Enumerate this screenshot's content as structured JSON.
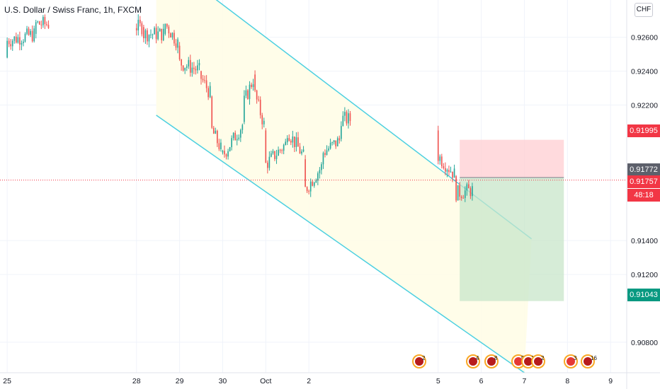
{
  "header": {
    "symbol_title": "U.S. Dollar / Swiss Franc, 1h, FXCM",
    "currency": "CHF"
  },
  "colors": {
    "up": "#26a69a",
    "down": "#ef5350",
    "channel_line": "#4dd0e1",
    "channel_fill": "#fffde7",
    "stop_zone": "#ffcdd2",
    "target_zone": "#c8e6c9",
    "stop_tag": "#f23645",
    "target_tag": "#089981"
  },
  "price_tags": {
    "stop": "0.91995",
    "entry": "0.91772",
    "last": "0.91757",
    "countdown": "48:18",
    "target": "0.91043"
  },
  "chart_data": {
    "type": "candlestick",
    "title": "U.S. Dollar / Swiss Franc, 1h, FXCM",
    "y_unit": "CHF",
    "ylim": [
      0.9062,
      0.9282
    ],
    "y_ticks": [
      "0.92600",
      "0.92400",
      "0.92200",
      "0.91400",
      "0.91200",
      "0.90800"
    ],
    "x_ticks": [
      "25",
      "28",
      "29",
      "30",
      "Oct",
      "2",
      "5",
      "6",
      "7",
      "8",
      "9"
    ],
    "x_range": [
      "Sep 24 20:00",
      "Oct 9 09:00"
    ],
    "grid": true,
    "candles_approx": [
      [
        "Sep 25 00:00",
        0.9248,
        0.9262,
        0.9244,
        0.9258
      ],
      [
        "Sep 25 16:00",
        0.9262,
        0.9272,
        0.9255,
        0.9268
      ],
      [
        "Sep 28 04:00",
        0.9266,
        0.9278,
        0.9258,
        0.9262
      ],
      [
        "Sep 28 16:00",
        0.9262,
        0.9272,
        0.9252,
        0.9268
      ],
      [
        "Sep 29 00:00",
        0.9255,
        0.9262,
        0.9238,
        0.9245
      ],
      [
        "Sep 29 12:00",
        0.924,
        0.9248,
        0.9232,
        0.9236
      ],
      [
        "Sep 29 18:00",
        0.9225,
        0.9232,
        0.92,
        0.9205
      ],
      [
        "Sep 30 00:00",
        0.9192,
        0.9198,
        0.9185,
        0.919
      ],
      [
        "Sep 30 12:00",
        0.921,
        0.9228,
        0.9205,
        0.9222
      ],
      [
        "Sep 30 18:00",
        0.9238,
        0.9245,
        0.922,
        0.9226
      ],
      [
        "Oct 1 00:00",
        0.9205,
        0.9215,
        0.916,
        0.9185
      ],
      [
        "Oct 1 12:00",
        0.9198,
        0.9212,
        0.919,
        0.9205
      ],
      [
        "Oct 1 22:00",
        0.9188,
        0.9195,
        0.9165,
        0.917
      ],
      [
        "Oct 2 08:00",
        0.9185,
        0.9198,
        0.9176,
        0.9192
      ],
      [
        "Oct 2 18:00",
        0.92,
        0.9218,
        0.9195,
        0.9212
      ],
      [
        "Oct 5 00:00",
        0.9205,
        0.9215,
        0.918,
        0.919
      ],
      [
        "Oct 5 10:00",
        0.9178,
        0.9185,
        0.9158,
        0.9168
      ],
      [
        "Oct 5 20:00",
        0.917,
        0.9182,
        0.9165,
        0.9177
      ]
    ],
    "channel": {
      "upper": [
        [
          "Sep 28 11:00",
          0.9309
        ],
        [
          "Oct 7 04:00",
          0.9141
        ]
      ],
      "lower": [
        [
          "Sep 28 11:00",
          0.9214
        ],
        [
          "Oct 7 00:00",
          0.9062
        ]
      ]
    },
    "position": {
      "side": "short",
      "entry": 0.91772,
      "stop": 0.91995,
      "target": 0.91043,
      "span": [
        "Oct 5 12:00",
        "Oct 7 22:00"
      ]
    },
    "last_price": 0.91757,
    "event_markers": [
      "2",
      "4",
      "8",
      "5",
      "14",
      "2",
      "3",
      "16"
    ]
  }
}
